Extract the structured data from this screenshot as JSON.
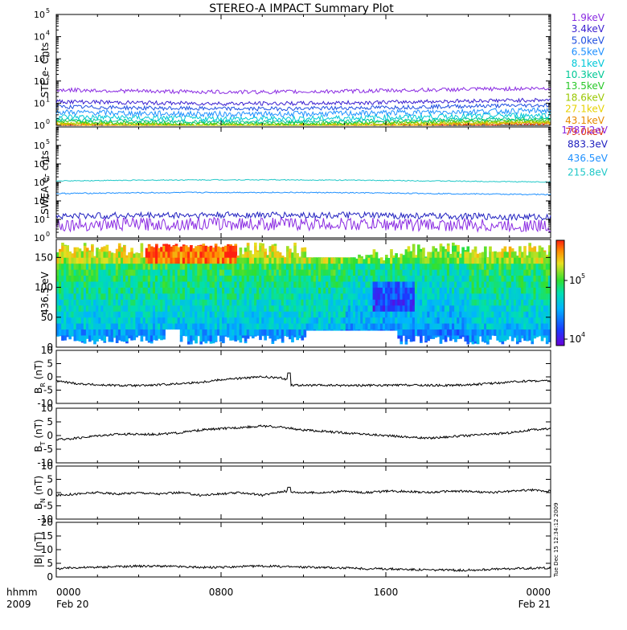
{
  "title": "STEREO-A IMPACT Summary Plot",
  "legend_ste": [
    {
      "label": "1.9keV",
      "color": "#8a2be2"
    },
    {
      "label": "3.4keV",
      "color": "#3a1fd0"
    },
    {
      "label": "5.0keV",
      "color": "#1f4fe0"
    },
    {
      "label": "6.5keV",
      "color": "#1e90ff"
    },
    {
      "label": "8.1keV",
      "color": "#00c8d8"
    },
    {
      "label": "10.3keV",
      "color": "#00c896"
    },
    {
      "label": "13.5keV",
      "color": "#28c828"
    },
    {
      "label": "18.6keV",
      "color": "#9ac800"
    },
    {
      "label": "27.1keV",
      "color": "#e6d200"
    },
    {
      "label": "43.1keV",
      "color": "#e68a00"
    },
    {
      "label": "79.0keV",
      "color": "#e03010"
    }
  ],
  "legend_swea": [
    {
      "label": "1787.2eV",
      "color": "#8a2be2"
    },
    {
      "label": "883.3eV",
      "color": "#2020c0"
    },
    {
      "label": "436.5eV",
      "color": "#1e90ff"
    },
    {
      "label": "215.8eV",
      "color": "#20c8c8"
    }
  ],
  "panels": {
    "ste": {
      "ylabel": "STE e- Cnts",
      "ticks": [
        "10",
        "10",
        "10",
        "10",
        "10",
        "10"
      ],
      "exps": [
        "0",
        "1",
        "2",
        "3",
        "4",
        "5"
      ]
    },
    "swea": {
      "ylabel": "SWEA e- cnts",
      "ticks": [
        "10",
        "10",
        "10",
        "10",
        "10",
        "10"
      ],
      "exps": [
        "0",
        "1",
        "2",
        "3",
        "4",
        "5"
      ]
    },
    "spec": {
      "ylabel": "436.5 eV",
      "ticks": [
        "0",
        "50",
        "100",
        "150"
      ],
      "cbar_ticks": [
        "10",
        "10"
      ],
      "cbar_exps": [
        "4",
        "5"
      ]
    },
    "br": {
      "ylabel_main": "B",
      "ylabel_sub": "R",
      "ylabel_unit": " (nT)",
      "ticks": [
        "10",
        "5",
        "0",
        "-5",
        "-10"
      ]
    },
    "bt": {
      "ylabel_main": "B",
      "ylabel_sub": "T",
      "ylabel_unit": " (nT)",
      "ticks": [
        "10",
        "5",
        "0",
        "-5",
        "-10"
      ]
    },
    "bn": {
      "ylabel_main": "B",
      "ylabel_sub": "N",
      "ylabel_unit": " (nT)",
      "ticks": [
        "10",
        "5",
        "0",
        "-5",
        "-10"
      ]
    },
    "bmag": {
      "ylabel": "|B| (nT)",
      "ticks": [
        "20",
        "15",
        "10",
        "5",
        "0"
      ]
    }
  },
  "xaxis": {
    "ticks": [
      "0000",
      "0800",
      "1600",
      "0000"
    ],
    "dates": [
      "Feb 20",
      "",
      "",
      "Feb 21"
    ],
    "left_label_top": "hhmm",
    "left_label_bottom": "2009"
  },
  "timestamp": "Tue Dec 15 12:34:12 2009",
  "chart_data": {
    "type": "line",
    "title": "STEREO-A IMPACT Summary Plot",
    "x_range_hours": [
      0,
      24
    ],
    "x_tick_labels": [
      "0000",
      "0800",
      "1600",
      "0000"
    ],
    "panels": [
      {
        "name": "STE e- Cnts",
        "scale": "log",
        "ylim": [
          1,
          100000
        ],
        "series": [
          {
            "name": "1.9keV",
            "level": 40
          },
          {
            "name": "3.4keV",
            "level": 12
          },
          {
            "name": "5.0keV",
            "level": 7
          },
          {
            "name": "6.5keV",
            "level": 4
          },
          {
            "name": "8.1keV",
            "level": 2.5
          },
          {
            "name": "10.3keV",
            "level": 1.8
          },
          {
            "name": "13.5keV",
            "level": 1.5
          },
          {
            "name": "18.6keV",
            "level": 1.3
          },
          {
            "name": "27.1keV",
            "level": 1.2
          },
          {
            "name": "43.1keV",
            "level": 1.1
          },
          {
            "name": "79.0keV",
            "level": 1.05
          }
        ]
      },
      {
        "name": "SWEA e- cnts",
        "scale": "log",
        "ylim": [
          1,
          1000000
        ],
        "series": [
          {
            "name": "1787.2eV",
            "level": 5
          },
          {
            "name": "883.3eV",
            "level": 15
          },
          {
            "name": "436.5eV",
            "level": 250
          },
          {
            "name": "215.8eV",
            "level": 1200
          }
        ]
      },
      {
        "name": "436.5 eV",
        "type": "heatmap",
        "ylim": [
          0,
          180
        ],
        "colorbar": "log",
        "clim": [
          10000,
          300000
        ]
      },
      {
        "name": "BR (nT)",
        "ylim": [
          -10,
          10
        ],
        "x": [
          0,
          1,
          2,
          3,
          4,
          5,
          6,
          7,
          8,
          9,
          10,
          11,
          11.2,
          11.4,
          12,
          13,
          14,
          15,
          16,
          17,
          18,
          19,
          20,
          21,
          22,
          23,
          24
        ],
        "y": [
          -1.5,
          -2.5,
          -3,
          -3.2,
          -3.3,
          -3,
          -2.5,
          -2,
          -1,
          -0.5,
          0,
          -0.5,
          -1,
          -3,
          -3.2,
          -3.2,
          -3.2,
          -3.2,
          -3.2,
          -3.1,
          -3.2,
          -3.2,
          -3,
          -2.5,
          -2,
          -1.5,
          -1.5
        ]
      },
      {
        "name": "BT (nT)",
        "ylim": [
          -10,
          10
        ],
        "x": [
          0,
          1,
          2,
          3,
          4,
          5,
          6,
          7,
          8,
          9,
          10,
          11,
          12,
          13,
          14,
          15,
          16,
          17,
          18,
          19,
          20,
          21,
          22,
          23,
          24
        ],
        "y": [
          -1.5,
          -1,
          0,
          0.5,
          0.5,
          0.5,
          1,
          2,
          2.5,
          3,
          3.5,
          3,
          2,
          1.5,
          1,
          0.5,
          0,
          -0.5,
          -1,
          -0.5,
          0,
          0.5,
          1,
          2,
          2.5
        ]
      },
      {
        "name": "BN (nT)",
        "ylim": [
          -10,
          10
        ],
        "x": [
          0,
          1,
          2,
          3,
          4,
          5,
          6,
          7,
          8,
          9,
          10,
          11,
          12,
          13,
          14,
          15,
          16,
          17,
          18,
          19,
          20,
          21,
          22,
          23,
          24
        ],
        "y": [
          -1,
          -0.5,
          0,
          -0.5,
          0,
          -0.5,
          0,
          -1,
          -0.5,
          0,
          -1,
          0.5,
          0,
          0,
          0.5,
          0,
          0.5,
          0.5,
          0,
          0.5,
          0.5,
          0,
          0.5,
          1,
          0.5
        ]
      },
      {
        "name": "|B| (nT)",
        "ylim": [
          0,
          20
        ],
        "x": [
          0,
          1,
          2,
          3,
          4,
          5,
          6,
          7,
          8,
          9,
          10,
          11,
          12,
          13,
          14,
          15,
          16,
          17,
          18,
          19,
          20,
          21,
          22,
          23,
          24
        ],
        "y": [
          3,
          3.5,
          3.5,
          3.8,
          4,
          4,
          3.8,
          3.5,
          3.5,
          3.8,
          4,
          3.8,
          3.6,
          3.5,
          3.3,
          3,
          3,
          2.8,
          2.6,
          2.5,
          2.5,
          2.8,
          3,
          3.2,
          3.3
        ]
      }
    ]
  }
}
